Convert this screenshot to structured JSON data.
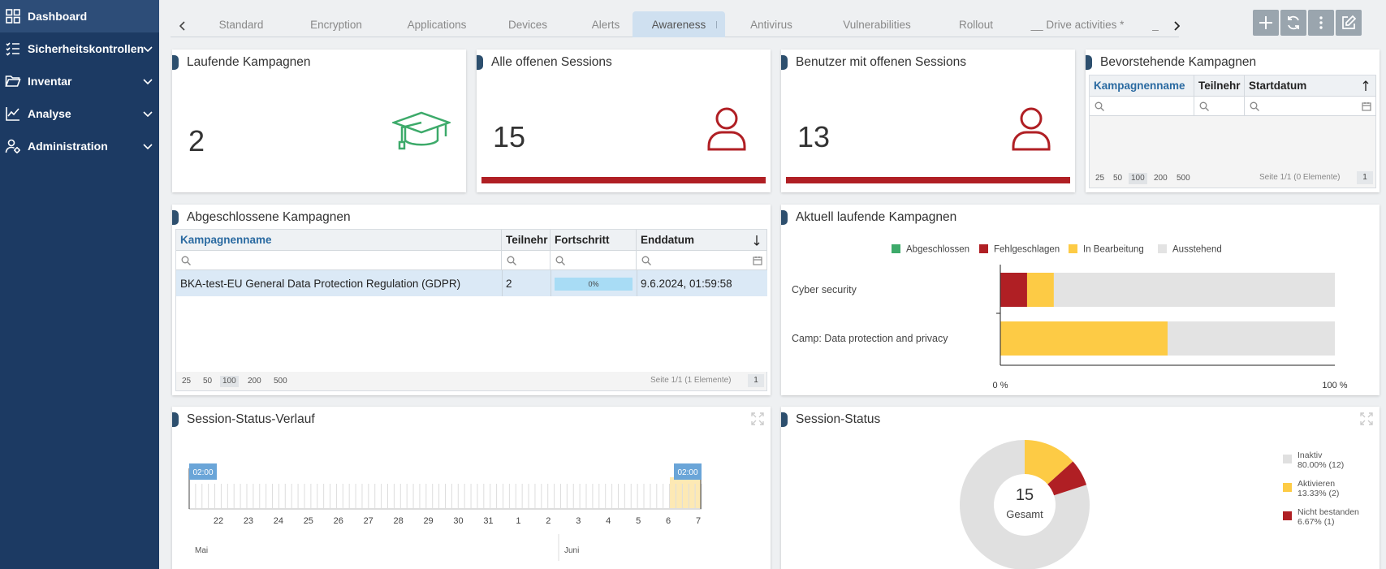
{
  "sidebar": {
    "items": [
      {
        "label": "Dashboard"
      },
      {
        "label": "Sicherheitskontrollen"
      },
      {
        "label": "Inventar"
      },
      {
        "label": "Analyse"
      },
      {
        "label": "Administration"
      }
    ]
  },
  "tabs": [
    "Standard",
    "Encryption",
    "Applications",
    "Devices",
    "Alerts",
    "Awareness",
    "Antivirus",
    "Vulnerabilities",
    "Rollout",
    "__ Drive activities *",
    "_"
  ],
  "active_tab": "Awareness",
  "widgets": {
    "laufende": {
      "title": "Laufende Kampagnen",
      "value": "2"
    },
    "alle_sessions": {
      "title": "Alle offenen Sessions",
      "value": "15"
    },
    "benutzer_sessions": {
      "title": "Benutzer mit offenen Sessions",
      "value": "13"
    },
    "bevorstehende": {
      "title": "Bevorstehende Kampagnen",
      "columns": [
        "Kampagnenname",
        "Teilnehr",
        "Startdatum"
      ],
      "page_sizes": [
        "25",
        "50",
        "100",
        "200",
        "500"
      ],
      "page_info": "Seite 1/1 (0 Elemente)",
      "page_number": "1"
    },
    "abgeschlossene": {
      "title": "Abgeschlossene Kampagnen",
      "columns": [
        "Kampagnenname",
        "Teilnehr",
        "Fortschritt",
        "Enddatum"
      ],
      "row": {
        "name": "BKA-test-EU General Data Protection Regulation (GDPR)",
        "teilnehmer": "2",
        "progress": "0%",
        "progress_value": 0,
        "enddatum": "9.6.2024, 01:59:58"
      },
      "page_sizes": [
        "25",
        "50",
        "100",
        "200",
        "500"
      ],
      "page_info": "Seite 1/1 (1 Elemente)",
      "page_number": "1"
    },
    "aktuell": {
      "title": "Aktuell laufende Kampagnen"
    },
    "verlauf": {
      "title": "Session-Status-Verlauf",
      "marker_left": "02:00",
      "marker_right": "02:00",
      "days": [
        "22",
        "23",
        "24",
        "25",
        "26",
        "27",
        "28",
        "29",
        "30",
        "31",
        "1",
        "2",
        "3",
        "4",
        "5",
        "6",
        "7"
      ],
      "months": [
        "Mai",
        "Juni"
      ]
    },
    "status": {
      "title": "Session-Status",
      "center_value": "15",
      "center_label": "Gesamt"
    }
  },
  "chart_data": [
    {
      "type": "bar",
      "orientation": "horizontal-stacked-percent",
      "categories": [
        "Cyber security",
        "Camp: Data protection and privacy"
      ],
      "series": [
        {
          "name": "Abgeschlossen",
          "color": "#3daa6a",
          "values": [
            0,
            0
          ]
        },
        {
          "name": "Fehlgeschlagen",
          "color": "#b01f24",
          "values": [
            8,
            0
          ]
        },
        {
          "name": "In Bearbeitung",
          "color": "#fdcb45",
          "values": [
            8,
            50
          ]
        },
        {
          "name": "Ausstehend",
          "color": "#e3e3e3",
          "values": [
            84,
            50
          ]
        }
      ],
      "xlim": [
        0,
        100
      ],
      "xticks": [
        "0 %",
        "100 %"
      ],
      "legend": "top"
    },
    {
      "type": "pie",
      "donut": true,
      "slices": [
        {
          "name": "Inaktiv",
          "value": 12,
          "percent": "80.00% (12)",
          "color": "#e0e0e0"
        },
        {
          "name": "Aktivieren",
          "value": 2,
          "percent": "13.33% (2)",
          "color": "#fdcb45"
        },
        {
          "name": "Nicht bestanden",
          "value": 1,
          "percent": "6.67% (1)",
          "color": "#b01f24"
        }
      ],
      "legend": "right"
    }
  ],
  "colors": {
    "sidebar": "#1c3a63",
    "accent_red": "#b01f24",
    "accent_green": "#3daa6a",
    "link": "#2a6aa1"
  }
}
